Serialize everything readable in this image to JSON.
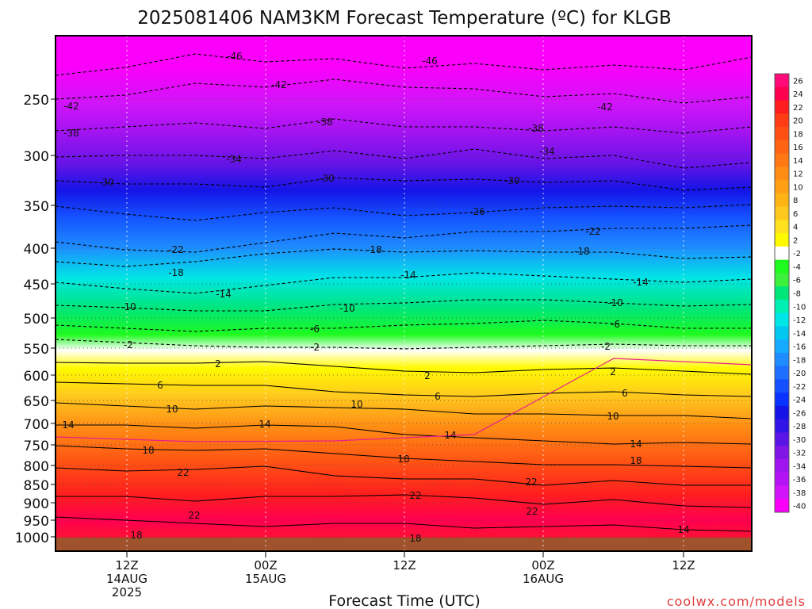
{
  "chart_data": {
    "type": "heatmap",
    "title": "2025081406 NAM3KM Forecast Temperature (ºC) for KLGB",
    "xlabel": "Forecast Time (UTC)",
    "credit": "coolwx.com/models",
    "yaxis": {
      "tick_labels": [
        "250",
        "300",
        "350",
        "400",
        "450",
        "500",
        "550",
        "600",
        "650",
        "700",
        "750",
        "800",
        "850",
        "900",
        "950",
        "1000"
      ]
    },
    "xaxis": {
      "ticks": [
        {
          "line1": "12Z",
          "line2": "14AUG",
          "line3": "2025"
        },
        {
          "line1": "00Z",
          "line2": "15AUG",
          "line3": ""
        },
        {
          "line1": "12Z",
          "line2": "",
          "line3": ""
        },
        {
          "line1": "00Z",
          "line2": "16AUG",
          "line3": ""
        },
        {
          "line1": "12Z",
          "line2": "",
          "line3": ""
        }
      ]
    },
    "colorbar": {
      "labels": [
        "26",
        "24",
        "22",
        "20",
        "18",
        "16",
        "14",
        "12",
        "10",
        "8",
        "6",
        "4",
        "2",
        "-2",
        "-4",
        "-6",
        "-8",
        "-10",
        "-12",
        "-14",
        "-16",
        "-18",
        "-20",
        "-22",
        "-24",
        "-26",
        "-28",
        "-30",
        "-32",
        "-34",
        "-36",
        "-38",
        "-40"
      ],
      "colors": [
        "#ff0a78",
        "#ff0050",
        "#ff1e1e",
        "#ff3c14",
        "#ff5014",
        "#ff6414",
        "#ff7814",
        "#ff8c14",
        "#ffa014",
        "#ffb414",
        "#ffc81e",
        "#ffe11e",
        "#fffa00",
        "#ffffff",
        "#1efa1e",
        "#3cf03c",
        "#00e678",
        "#00f0b4",
        "#00e6e6",
        "#00c8f0",
        "#14aaff",
        "#1e8cff",
        "#1e6eff",
        "#1450ff",
        "#0a32ff",
        "#1414e6",
        "#3214e6",
        "#5a14e6",
        "#8214e6",
        "#a014f0",
        "#b414f5",
        "#d214fa",
        "#fa00fa"
      ]
    },
    "contour_labels": [
      {
        "text": "-46"
      },
      {
        "text": "-46"
      },
      {
        "text": "-42"
      },
      {
        "text": "-42"
      },
      {
        "text": "-42"
      },
      {
        "text": "-38"
      },
      {
        "text": "-38"
      },
      {
        "text": "-38"
      },
      {
        "text": "-34"
      },
      {
        "text": "-34"
      },
      {
        "text": "-30"
      },
      {
        "text": "-30"
      },
      {
        "text": "-30"
      },
      {
        "text": "-26"
      },
      {
        "text": "-22"
      },
      {
        "text": "-22"
      },
      {
        "text": "-18"
      },
      {
        "text": "-18"
      },
      {
        "text": "-18"
      },
      {
        "text": "-14"
      },
      {
        "text": "-14"
      },
      {
        "text": "-14"
      },
      {
        "text": "-10"
      },
      {
        "text": "-10"
      },
      {
        "text": "-10"
      },
      {
        "text": "-6"
      },
      {
        "text": "-6"
      },
      {
        "text": "-2"
      },
      {
        "text": "-2"
      },
      {
        "text": "-2"
      },
      {
        "text": "2"
      },
      {
        "text": "2"
      },
      {
        "text": "2"
      },
      {
        "text": "6"
      },
      {
        "text": "6"
      },
      {
        "text": "6"
      },
      {
        "text": "10"
      },
      {
        "text": "10"
      },
      {
        "text": "10"
      },
      {
        "text": "14"
      },
      {
        "text": "14"
      },
      {
        "text": "14"
      },
      {
        "text": "14"
      },
      {
        "text": "18"
      },
      {
        "text": "18"
      },
      {
        "text": "18"
      },
      {
        "text": "22"
      },
      {
        "text": "22"
      },
      {
        "text": "22"
      },
      {
        "text": "22"
      },
      {
        "text": "22"
      },
      {
        "text": "18"
      },
      {
        "text": "18"
      },
      {
        "text": "14"
      }
    ]
  }
}
